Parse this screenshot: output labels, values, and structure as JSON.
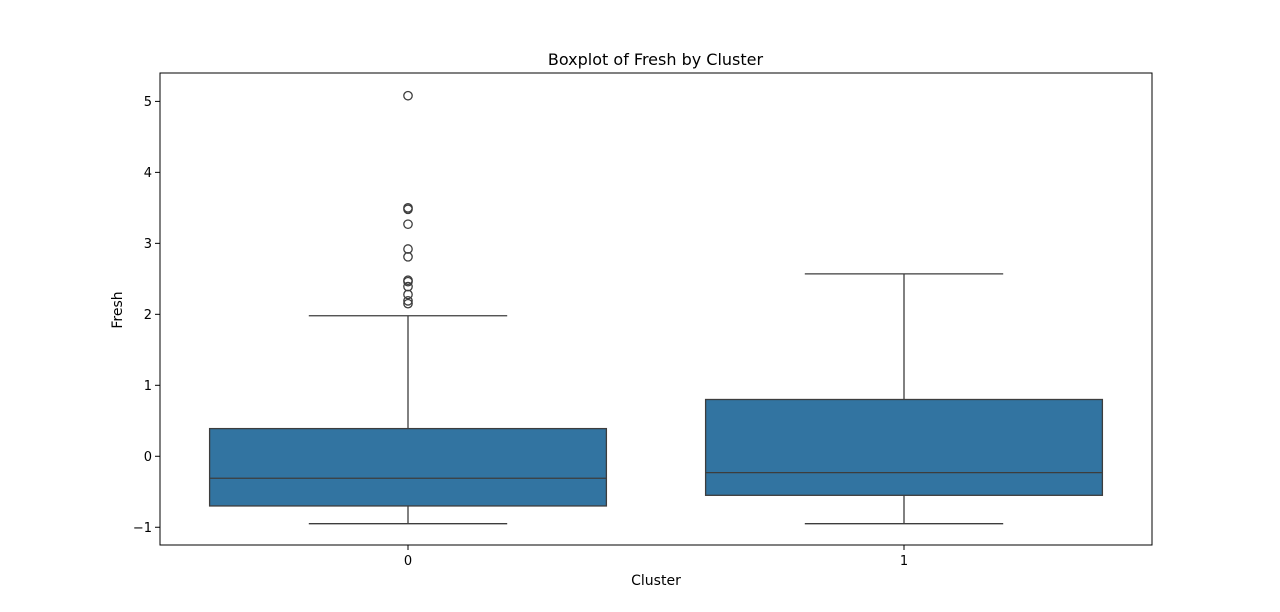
{
  "chart_data": {
    "type": "box",
    "title": "Boxplot of Fresh by Cluster",
    "xlabel": "Cluster",
    "ylabel": "Fresh",
    "categories": [
      "0",
      "1"
    ],
    "ylim": [
      -1.25,
      5.4
    ],
    "yticks": [
      -1,
      0,
      1,
      2,
      3,
      4,
      5
    ],
    "ytick_labels": [
      "−1",
      "0",
      "1",
      "2",
      "3",
      "4",
      "5"
    ],
    "grid": false,
    "legend": "none",
    "box_color": "#3274a1",
    "line_color": "#3d3d3d",
    "boxes": [
      {
        "category": "0",
        "whisker_low": -0.95,
        "q1": -0.7,
        "median": -0.31,
        "q3": 0.39,
        "whisker_high": 1.98,
        "outliers": [
          2.15,
          2.19,
          2.28,
          2.39,
          2.46,
          2.48,
          2.81,
          2.92,
          3.27,
          3.48,
          3.5,
          5.08
        ]
      },
      {
        "category": "1",
        "whisker_low": -0.95,
        "q1": -0.55,
        "median": -0.23,
        "q3": 0.8,
        "whisker_high": 2.57,
        "outliers": []
      }
    ]
  }
}
